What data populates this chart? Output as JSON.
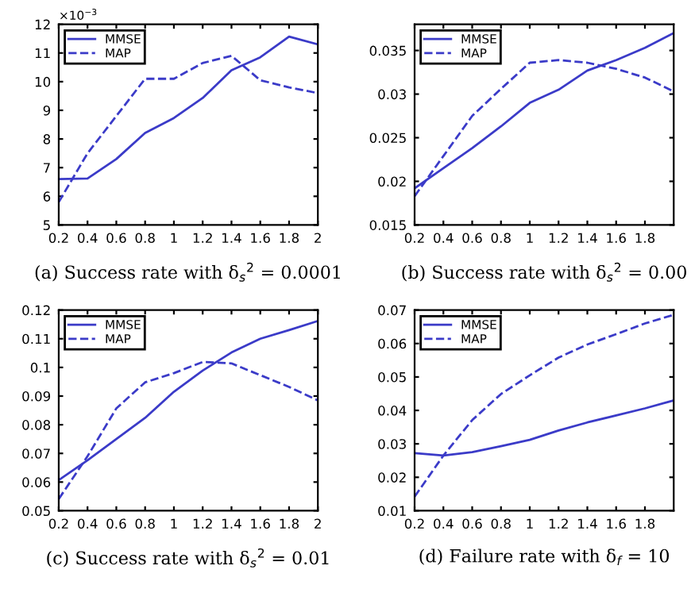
{
  "chart_data": [
    {
      "type": "line",
      "xlabel": "(a) Success rate with δ$_{s}$$^{2}$ = 0.0001",
      "annotations": [
        "×10$^{−3}$"
      ],
      "x": [
        0.2,
        0.4,
        0.6,
        0.8,
        1.0,
        1.2,
        1.4,
        1.6,
        1.8,
        2.0
      ],
      "series": [
        {
          "name": "MMSE",
          "color": "#3b3bc8",
          "line_style": "solid",
          "values": [
            6.6,
            6.62,
            7.3,
            8.21,
            8.73,
            9.43,
            10.4,
            10.85,
            11.57,
            11.3
          ]
        },
        {
          "name": "MAP",
          "color": "#3b3bc8",
          "line_style": "dashed",
          "values": [
            5.8,
            7.5,
            8.8,
            10.1,
            10.1,
            10.65,
            10.9,
            10.05,
            9.8,
            9.6
          ]
        }
      ],
      "xlim": [
        0.2,
        2
      ],
      "xticks": [
        0.2,
        0.4,
        0.6,
        0.8,
        1,
        1.2,
        1.4,
        1.6,
        1.8,
        2
      ],
      "ylim": [
        5,
        12
      ],
      "yticks": [
        5,
        6,
        7,
        8,
        9,
        10,
        11,
        12
      ],
      "legend": "top left",
      "grid": false
    },
    {
      "type": "line",
      "xlabel": "(b) Success rate with δ$_{s}$$^{2}$ = 0.00",
      "x": [
        0.2,
        0.4,
        0.6,
        0.8,
        1.0,
        1.2,
        1.4,
        1.6,
        1.8,
        2.0
      ],
      "series": [
        {
          "name": "MMSE",
          "color": "#3b3bc8",
          "line_style": "solid",
          "values": [
            0.0192,
            0.0215,
            0.0238,
            0.0263,
            0.029,
            0.0305,
            0.0327,
            0.0339,
            0.0353,
            0.037
          ]
        },
        {
          "name": "MAP",
          "color": "#3b3bc8",
          "line_style": "dashed",
          "values": [
            0.0183,
            0.0229,
            0.0275,
            0.0306,
            0.0336,
            0.0339,
            0.0336,
            0.0329,
            0.0319,
            0.0303
          ]
        }
      ],
      "xlim": [
        0.2,
        2
      ],
      "xticks": [
        0.2,
        0.4,
        0.6,
        0.8,
        1,
        1.2,
        1.4,
        1.6,
        1.8
      ],
      "ylim": [
        0.015,
        0.038
      ],
      "yticks": [
        0.015,
        0.02,
        0.025,
        0.03,
        0.035
      ],
      "legend": "top left",
      "grid": false
    },
    {
      "type": "line",
      "xlabel": "(c) Success rate with δ$_{s}$$^{2}$ = 0.01",
      "x": [
        0.2,
        0.4,
        0.6,
        0.8,
        1.0,
        1.2,
        1.4,
        1.6,
        1.8,
        2.0
      ],
      "series": [
        {
          "name": "MMSE",
          "color": "#3b3bc8",
          "line_style": "solid",
          "values": [
            0.0607,
            0.0676,
            0.075,
            0.0824,
            0.0915,
            0.0989,
            0.1052,
            0.11,
            0.113,
            0.1162
          ]
        },
        {
          "name": "MAP",
          "color": "#3b3bc8",
          "line_style": "dashed",
          "values": [
            0.0541,
            0.069,
            0.0857,
            0.0948,
            0.098,
            0.1019,
            0.1014,
            0.0973,
            0.0932,
            0.0885
          ]
        }
      ],
      "xlim": [
        0.2,
        2
      ],
      "xticks": [
        0.2,
        0.4,
        0.6,
        0.8,
        1,
        1.2,
        1.4,
        1.6,
        1.8,
        2
      ],
      "ylim": [
        0.05,
        0.12
      ],
      "yticks": [
        0.05,
        0.06,
        0.07,
        0.08,
        0.09,
        0.1,
        0.11,
        0.12
      ],
      "legend": "top left",
      "grid": false
    },
    {
      "type": "line",
      "xlabel": "(d) Failure rate with δ$_{f}$ = 10",
      "x": [
        0.2,
        0.4,
        0.6,
        0.8,
        1.0,
        1.2,
        1.4,
        1.6,
        1.8,
        2.0
      ],
      "series": [
        {
          "name": "MMSE",
          "color": "#3b3bc8",
          "line_style": "solid",
          "values": [
            0.0272,
            0.0265,
            0.0275,
            0.0293,
            0.0312,
            0.034,
            0.0364,
            0.0385,
            0.0406,
            0.043
          ]
        },
        {
          "name": "MAP",
          "color": "#3b3bc8",
          "line_style": "dashed",
          "values": [
            0.0142,
            0.0265,
            0.0371,
            0.0449,
            0.0505,
            0.0558,
            0.0597,
            0.0628,
            0.066,
            0.0686
          ]
        }
      ],
      "xlim": [
        0.2,
        2
      ],
      "xticks": [
        0.2,
        0.4,
        0.6,
        0.8,
        1,
        1.2,
        1.4,
        1.6,
        1.8
      ],
      "ylim": [
        0.01,
        0.07
      ],
      "yticks": [
        0.01,
        0.02,
        0.03,
        0.04,
        0.05,
        0.06,
        0.07
      ],
      "legend": "top left",
      "grid": false
    }
  ]
}
